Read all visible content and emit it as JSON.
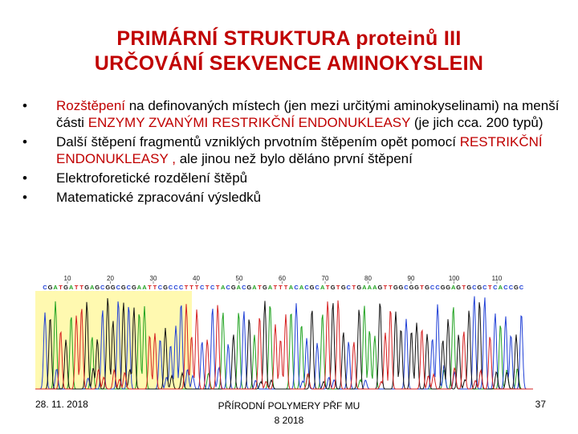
{
  "title": {
    "line1": "PRIMÁRNÍ STRUKTURA proteinů III",
    "line2": "URČOVÁNÍ SEKVENCE AMINOKYSLEIN"
  },
  "bullets": {
    "b1": {
      "p1": "Rozštěpení",
      "p2": " na definovaných místech (jen mezi určitými aminokyselinami) na menší části ",
      "p3": "ENZYMY ZVANÝMI  RESTRIKČNÍ ENDONUKLEASY",
      "p4": " (je jich cca. 200 typů)"
    },
    "b2": {
      "p1": "Další štěpení fragmentů vzniklých prvotním štěpením opět pomocí ",
      "p2": "RESTRIKČNÍ ENDONUKLEASY ,",
      "p3": "  ale jinou než bylo děláno první štěpení"
    },
    "b3": "Elektroforetické rozdělení štěpů",
    "b4": "Matematické zpracování výsledků"
  },
  "chromatogram": {
    "positions": [
      "10",
      "20",
      "30",
      "40",
      "50",
      "60",
      "70",
      "80",
      "90",
      "100",
      "110"
    ],
    "sequence": "CGATGATTGAGCGGCGCGAATTCGCCCTTTCTCTACGACGATGATTTACACGCATGTGCTGAAAGTTGGCGGTGCCGGAGTGCGCTCACCGC",
    "colors": {
      "A": "#1fa21f",
      "C": "#1f3fd6",
      "G": "#111111",
      "T": "#d62020"
    },
    "highlight_color": "#fff9b0"
  },
  "footer": {
    "date": "28. 11. 2018",
    "center_line1": "PŘÍRODNÍ POLYMERY PŘF MU",
    "center_line2": "8 2018",
    "page": "37"
  }
}
